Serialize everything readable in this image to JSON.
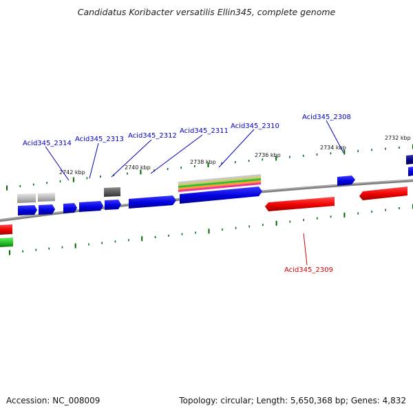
{
  "title": "Candidatus Koribacter versatilis Ellin345, complete genome",
  "footer": {
    "accession": "Accession: NC_008009",
    "topology": "Topology: circular; Length: 5,650,368 bp; Genes: 4,832"
  },
  "colors": {
    "backbone": "#808080",
    "forward_cds": "#0000dd",
    "reverse_cds": "#ee0000",
    "gc_tick": "#006600",
    "label_forward": "#0000bb",
    "label_reverse": "#cc0000",
    "grey_feature": "#b4b4b4",
    "dark_feature": "#555555",
    "green_feature": "#22bb22",
    "navy_feature": "#000080"
  },
  "scale": {
    "unit": "kbp",
    "ticks": [
      "2742 kbp",
      "2740 kbp",
      "2738 kbp",
      "2736 kbp",
      "2734 kbp",
      "2732 kbp"
    ]
  },
  "gene_labels": [
    {
      "name": "Acid345_2314",
      "strand": "forward"
    },
    {
      "name": "Acid345_2313",
      "strand": "forward"
    },
    {
      "name": "Acid345_2312",
      "strand": "forward"
    },
    {
      "name": "Acid345_2311",
      "strand": "forward"
    },
    {
      "name": "Acid345_2310",
      "strand": "forward"
    },
    {
      "name": "Acid345_2308",
      "strand": "forward"
    },
    {
      "name": "Acid345_2309",
      "strand": "reverse"
    }
  ]
}
